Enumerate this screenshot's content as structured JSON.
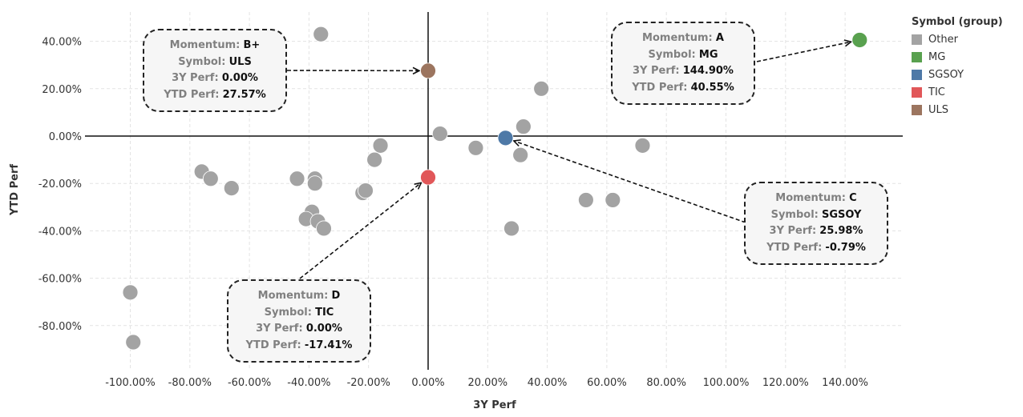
{
  "chart_data": {
    "type": "scatter",
    "xlabel": "3Y Perf",
    "ylabel": "YTD Perf",
    "xlim": [
      -1.1,
      1.6
    ],
    "ylim": [
      -0.97,
      0.53
    ],
    "x_ticks": [
      -1.0,
      -0.8,
      -0.6,
      -0.4,
      -0.2,
      0.0,
      0.2,
      0.4,
      0.6,
      0.8,
      1.0,
      1.2,
      1.4
    ],
    "x_tick_labels": [
      "-100.00%",
      "-80.00%",
      "-60.00%",
      "-40.00%",
      "-20.00%",
      "0.00%",
      "20.00%",
      "40.00%",
      "60.00%",
      "80.00%",
      "100.00%",
      "120.00%",
      "140.00%"
    ],
    "y_ticks": [
      0.4,
      0.2,
      0.0,
      -0.2,
      -0.4,
      -0.6,
      -0.8
    ],
    "y_tick_labels": [
      "40.00%",
      "20.00%",
      "0.00%",
      "-20.00%",
      "-40.00%",
      "-60.00%",
      "-80.00%"
    ],
    "grid": true,
    "legend": {
      "title": "Symbol (group)",
      "placement": "right",
      "entries": [
        {
          "name": "Other",
          "color": "#a3a3a3"
        },
        {
          "name": "MG",
          "color": "#59a14f"
        },
        {
          "name": "SGSOY",
          "color": "#4e79a7"
        },
        {
          "name": "TIC",
          "color": "#e15759"
        },
        {
          "name": "ULS",
          "color": "#9c755f"
        }
      ]
    },
    "series": [
      {
        "name": "Other",
        "color": "#a3a3a3",
        "points": [
          {
            "x": -0.36,
            "y": 0.43
          },
          {
            "x": 0.38,
            "y": 0.2
          },
          {
            "x": 0.32,
            "y": 0.04
          },
          {
            "x": 0.04,
            "y": 0.01
          },
          {
            "x": 0.16,
            "y": -0.05
          },
          {
            "x": 0.31,
            "y": -0.08
          },
          {
            "x": 0.72,
            "y": -0.04
          },
          {
            "x": -0.16,
            "y": -0.04
          },
          {
            "x": -0.18,
            "y": -0.1
          },
          {
            "x": -0.76,
            "y": -0.15
          },
          {
            "x": -0.73,
            "y": -0.18
          },
          {
            "x": -0.66,
            "y": -0.22
          },
          {
            "x": -0.44,
            "y": -0.18
          },
          {
            "x": -0.38,
            "y": -0.18
          },
          {
            "x": -0.38,
            "y": -0.2
          },
          {
            "x": -0.22,
            "y": -0.24
          },
          {
            "x": -0.21,
            "y": -0.23
          },
          {
            "x": -0.39,
            "y": -0.32
          },
          {
            "x": -0.41,
            "y": -0.35
          },
          {
            "x": -0.37,
            "y": -0.36
          },
          {
            "x": -0.35,
            "y": -0.39
          },
          {
            "x": 0.28,
            "y": -0.39
          },
          {
            "x": 0.53,
            "y": -0.27
          },
          {
            "x": 0.62,
            "y": -0.27
          },
          {
            "x": -1.0,
            "y": -0.66
          },
          {
            "x": -0.99,
            "y": -0.87
          }
        ]
      },
      {
        "name": "MG",
        "color": "#59a14f",
        "points": [
          {
            "x": 1.449,
            "y": 0.4055
          }
        ]
      },
      {
        "name": "SGSOY",
        "color": "#4e79a7",
        "points": [
          {
            "x": 0.2598,
            "y": -0.0079
          }
        ]
      },
      {
        "name": "TIC",
        "color": "#e15759",
        "points": [
          {
            "x": 0.0,
            "y": -0.1741
          }
        ]
      },
      {
        "name": "ULS",
        "color": "#9c755f",
        "points": [
          {
            "x": 0.0,
            "y": 0.2757
          }
        ]
      }
    ],
    "annotations": [
      {
        "target": "ULS",
        "momentum_label": "Momentum:",
        "momentum": "B+",
        "symbol_label": "Symbol:",
        "symbol": "ULS",
        "perf3y_label": "3Y Perf:",
        "perf3y": "0.00%",
        "ytd_label": "YTD Perf:",
        "ytd": "27.57%"
      },
      {
        "target": "MG",
        "momentum_label": "Momentum:",
        "momentum": "A",
        "symbol_label": "Symbol:",
        "symbol": "MG",
        "perf3y_label": "3Y Perf:",
        "perf3y": "144.90%",
        "ytd_label": "YTD Perf:",
        "ytd": "40.55%"
      },
      {
        "target": "SGSOY",
        "momentum_label": "Momentum:",
        "momentum": "C",
        "symbol_label": "Symbol:",
        "symbol": "SGSOY",
        "perf3y_label": "3Y Perf:",
        "perf3y": "25.98%",
        "ytd_label": "YTD Perf:",
        "ytd": "-0.79%"
      },
      {
        "target": "TIC",
        "momentum_label": "Momentum:",
        "momentum": "D",
        "symbol_label": "Symbol:",
        "symbol": "TIC",
        "perf3y_label": "3Y Perf:",
        "perf3y": "0.00%",
        "ytd_label": "YTD Perf:",
        "ytd": "-17.41%"
      }
    ]
  }
}
